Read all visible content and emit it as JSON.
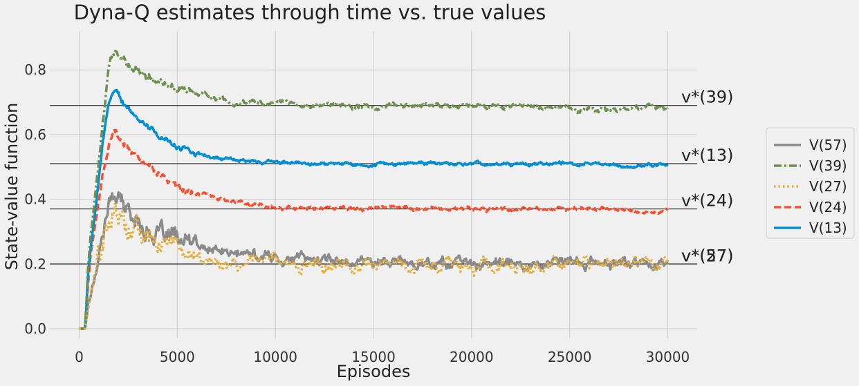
{
  "chart_data": {
    "type": "line",
    "title": "Dyna-Q estimates through time vs. true values",
    "xlabel": "Episodes",
    "ylabel": "State-value function",
    "xlim": [
      -1500,
      31500
    ],
    "ylim": [
      -0.03,
      0.92
    ],
    "xticks": [
      0,
      5000,
      10000,
      15000,
      20000,
      25000,
      30000
    ],
    "yticks": [
      0.0,
      0.2,
      0.4,
      0.6,
      0.8
    ],
    "xtick_labels": [
      "0",
      "5000",
      "10000",
      "15000",
      "20000",
      "25000",
      "30000"
    ],
    "ytick_labels": [
      "0.0",
      "0.2",
      "0.4",
      "0.6",
      "0.8"
    ],
    "grid": true,
    "legend_position": "right",
    "true_values": [
      {
        "label": "v*(39)",
        "value": 0.69
      },
      {
        "label": "v*(13)",
        "value": 0.51
      },
      {
        "label": "v*(24)",
        "value": 0.37
      },
      {
        "label": "v*(57)",
        "value": 0.2
      },
      {
        "label": "v*(27)",
        "value": 0.2
      }
    ],
    "series": [
      {
        "name": "V(57)",
        "color": "#8b8b8b",
        "dash": "solid",
        "noise": 0.018,
        "x": [
          0,
          300,
          450,
          600,
          900,
          1200,
          1500,
          1800,
          2200,
          3000,
          4000,
          5000,
          6000,
          7000,
          8000,
          10000,
          12000,
          15000,
          18000,
          20000,
          25000,
          30000
        ],
        "y": [
          0,
          0,
          0.08,
          0.12,
          0.2,
          0.3,
          0.38,
          0.42,
          0.38,
          0.33,
          0.29,
          0.27,
          0.25,
          0.24,
          0.23,
          0.22,
          0.215,
          0.21,
          0.205,
          0.2,
          0.2,
          0.205
        ]
      },
      {
        "name": "V(39)",
        "color": "#6d904f",
        "dash": "dashdot",
        "noise": 0.009,
        "x": [
          0,
          300,
          450,
          600,
          900,
          1200,
          1500,
          1700,
          2000,
          2500,
          3000,
          4000,
          5000,
          6000,
          7000,
          8000,
          10000,
          12000,
          15000,
          20000,
          25000,
          27000,
          29000,
          30000
        ],
        "y": [
          0,
          0,
          0.19,
          0.3,
          0.46,
          0.65,
          0.82,
          0.87,
          0.85,
          0.81,
          0.79,
          0.77,
          0.74,
          0.73,
          0.71,
          0.7,
          0.695,
          0.69,
          0.685,
          0.69,
          0.685,
          0.675,
          0.685,
          0.68
        ]
      },
      {
        "name": "V(27)",
        "color": "#e5ae38",
        "dash": "dotted",
        "noise": 0.022,
        "x": [
          0,
          300,
          450,
          600,
          900,
          1200,
          1500,
          1800,
          2200,
          3000,
          4000,
          5000,
          6000,
          7000,
          8000,
          10000,
          12000,
          15000,
          20000,
          25000,
          30000
        ],
        "y": [
          0,
          0,
          0.06,
          0.1,
          0.18,
          0.26,
          0.33,
          0.36,
          0.33,
          0.3,
          0.27,
          0.25,
          0.23,
          0.215,
          0.21,
          0.205,
          0.2,
          0.2,
          0.2,
          0.2,
          0.205
        ]
      },
      {
        "name": "V(24)",
        "color": "#fc4f30",
        "dash": "dashed",
        "noise": 0.007,
        "x": [
          0,
          300,
          450,
          600,
          900,
          1200,
          1500,
          1800,
          2200,
          3000,
          4000,
          5000,
          6000,
          7000,
          8000,
          9000,
          10000,
          12000,
          15000,
          20000,
          25000,
          30000
        ],
        "y": [
          0,
          0,
          0.14,
          0.24,
          0.36,
          0.48,
          0.56,
          0.6,
          0.57,
          0.52,
          0.48,
          0.44,
          0.42,
          0.4,
          0.385,
          0.38,
          0.375,
          0.372,
          0.37,
          0.37,
          0.368,
          0.365
        ]
      },
      {
        "name": "V(13)",
        "color": "#008fd5",
        "dash": "solid",
        "noise": 0.006,
        "x": [
          0,
          300,
          450,
          600,
          900,
          1200,
          1500,
          1800,
          2200,
          3000,
          4000,
          5000,
          6000,
          7000,
          8000,
          10000,
          15000,
          20000,
          25000,
          27000,
          28000,
          30000
        ],
        "y": [
          0,
          0,
          0.17,
          0.26,
          0.4,
          0.58,
          0.7,
          0.74,
          0.7,
          0.64,
          0.6,
          0.56,
          0.54,
          0.53,
          0.52,
          0.515,
          0.51,
          0.51,
          0.51,
          0.505,
          0.5,
          0.51
        ]
      }
    ],
    "legend_order": [
      "V(57)",
      "V(39)",
      "V(27)",
      "V(24)",
      "V(13)"
    ]
  }
}
